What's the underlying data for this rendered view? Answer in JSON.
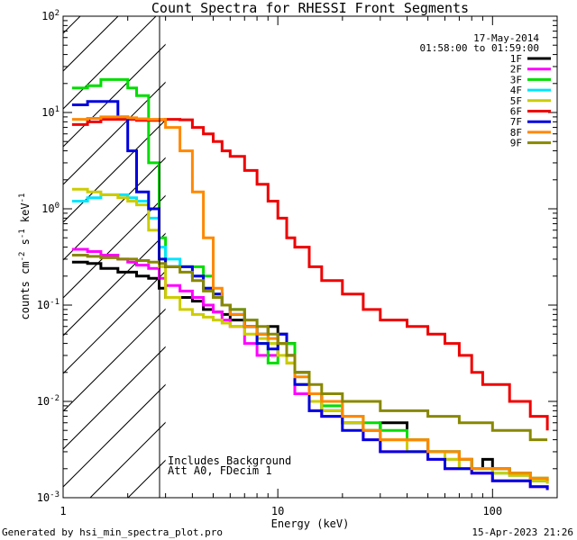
{
  "chart_data": {
    "type": "line",
    "title": "Count Spectra for RHESSI Front Segments",
    "xlabel": "Energy (keV)",
    "ylabel": "counts cm-2 s-1 keV-1",
    "xscale": "log",
    "yscale": "log",
    "xlim": [
      1,
      200
    ],
    "ylim": [
      0.001,
      100
    ],
    "x_tick_labels": [
      "1",
      "10",
      "100"
    ],
    "y_tick_labels": [
      "10-3",
      "10-2",
      "10-1",
      "100",
      "101",
      "102"
    ],
    "date": "17-May-2014",
    "time_range": "01:58:00 to 01:59:00",
    "annotations": [
      "Includes Background",
      "Att A0, FDecim 1"
    ],
    "footer_left": "Generated by hsi_min_spectra_plot.pro",
    "footer_right": "15-Apr-2023 21:26",
    "shaded_region_kev": [
      1,
      3
    ],
    "series": [
      {
        "name": "1F",
        "color": "#000000",
        "x": [
          1.1,
          1.3,
          1.5,
          1.8,
          2.0,
          2.2,
          2.5,
          2.8,
          3.0,
          3.5,
          4,
          4.5,
          5,
          5.5,
          6,
          7,
          8,
          9,
          10,
          11,
          12,
          14,
          16,
          20,
          25,
          30,
          40,
          50,
          60,
          70,
          80,
          90,
          100,
          120,
          150,
          180
        ],
        "y": [
          0.28,
          0.27,
          0.24,
          0.22,
          0.22,
          0.2,
          0.19,
          0.15,
          0.12,
          0.12,
          0.11,
          0.09,
          0.085,
          0.08,
          0.07,
          0.06,
          0.05,
          0.06,
          0.05,
          0.04,
          0.02,
          0.012,
          0.008,
          0.006,
          0.005,
          0.006,
          0.004,
          0.003,
          0.003,
          0.0025,
          0.002,
          0.0025,
          0.002,
          0.0018,
          0.0015,
          0.0015
        ]
      },
      {
        "name": "2F",
        "color": "#ff00ff",
        "x": [
          1.1,
          1.3,
          1.5,
          1.8,
          2.0,
          2.2,
          2.5,
          2.8,
          3.0,
          3.5,
          4,
          4.5,
          5,
          5.5,
          6,
          7,
          8,
          9,
          10,
          11,
          12,
          14,
          16,
          20,
          25,
          30,
          40,
          50,
          60,
          70,
          80,
          90,
          100,
          120,
          150,
          180
        ],
        "y": [
          0.38,
          0.36,
          0.33,
          0.3,
          0.28,
          0.26,
          0.24,
          0.19,
          0.16,
          0.14,
          0.12,
          0.1,
          0.085,
          0.07,
          0.06,
          0.04,
          0.03,
          0.03,
          0.04,
          0.025,
          0.012,
          0.008,
          0.007,
          0.006,
          0.004,
          0.003,
          0.003,
          0.0025,
          0.002,
          0.002,
          0.0018,
          0.0018,
          0.0015,
          0.0015,
          0.0013,
          0.0012
        ]
      },
      {
        "name": "3F",
        "color": "#00dd00",
        "x": [
          1.1,
          1.3,
          1.5,
          1.8,
          2.0,
          2.2,
          2.5,
          2.8,
          3.0,
          3.5,
          4,
          4.5,
          5,
          5.5,
          6,
          7,
          8,
          9,
          10,
          11,
          12,
          14,
          16,
          20,
          25,
          30,
          40,
          50,
          60,
          70,
          80,
          90,
          100,
          120,
          150,
          180
        ],
        "y": [
          18,
          19,
          22,
          22,
          18,
          15,
          3.0,
          0.5,
          0.25,
          0.25,
          0.25,
          0.2,
          0.12,
          0.1,
          0.09,
          0.06,
          0.04,
          0.025,
          0.04,
          0.04,
          0.02,
          0.01,
          0.009,
          0.007,
          0.006,
          0.005,
          0.004,
          0.003,
          0.003,
          0.0025,
          0.002,
          0.002,
          0.002,
          0.0018,
          0.0016,
          0.0015
        ]
      },
      {
        "name": "4F",
        "color": "#00e5ff",
        "x": [
          1.1,
          1.3,
          1.5,
          1.8,
          2.0,
          2.2,
          2.5,
          2.8,
          3.0,
          3.5,
          4,
          4.5,
          5,
          5.5,
          6,
          7,
          8,
          9,
          10,
          11,
          12,
          14,
          16,
          20,
          25,
          30,
          40,
          50,
          60,
          70,
          80,
          90,
          100,
          120,
          150,
          180
        ],
        "y": [
          1.2,
          1.3,
          1.4,
          1.4,
          1.3,
          1.2,
          0.8,
          0.4,
          0.3,
          0.25,
          0.2,
          0.15,
          0.13,
          0.1,
          0.09,
          0.07,
          0.05,
          0.04,
          0.04,
          0.03,
          0.015,
          0.01,
          0.008,
          0.006,
          0.005,
          0.004,
          0.003,
          0.003,
          0.0025,
          0.002,
          0.002,
          0.002,
          0.0018,
          0.0017,
          0.0015,
          0.0014
        ]
      },
      {
        "name": "5F",
        "color": "#cccc00",
        "x": [
          1.1,
          1.3,
          1.5,
          1.8,
          2.0,
          2.2,
          2.5,
          2.8,
          3.0,
          3.5,
          4,
          4.5,
          5,
          5.5,
          6,
          7,
          8,
          9,
          10,
          11,
          12,
          14,
          16,
          20,
          25,
          30,
          40,
          50,
          60,
          70,
          80,
          90,
          100,
          120,
          150,
          180
        ],
        "y": [
          1.6,
          1.5,
          1.4,
          1.3,
          1.2,
          1.1,
          0.6,
          0.25,
          0.12,
          0.09,
          0.08,
          0.075,
          0.07,
          0.065,
          0.06,
          0.05,
          0.045,
          0.04,
          0.03,
          0.025,
          0.015,
          0.01,
          0.008,
          0.006,
          0.005,
          0.004,
          0.003,
          0.003,
          0.0025,
          0.002,
          0.002,
          0.002,
          0.0018,
          0.0017,
          0.0015,
          0.0014
        ]
      },
      {
        "name": "6F",
        "color": "#ee0000",
        "x": [
          1.1,
          1.3,
          1.5,
          1.8,
          2.0,
          2.2,
          2.5,
          2.8,
          3.0,
          3.5,
          4,
          4.5,
          5,
          5.5,
          6,
          7,
          8,
          9,
          10,
          11,
          12,
          14,
          16,
          20,
          25,
          30,
          40,
          50,
          60,
          70,
          80,
          90,
          100,
          120,
          150,
          180
        ],
        "y": [
          7.5,
          8.0,
          8.5,
          8.5,
          8.5,
          8.3,
          8.3,
          8.4,
          8.5,
          8.4,
          7,
          6,
          5,
          4,
          3.5,
          2.5,
          1.8,
          1.2,
          0.8,
          0.5,
          0.4,
          0.25,
          0.18,
          0.13,
          0.09,
          0.07,
          0.06,
          0.05,
          0.04,
          0.03,
          0.02,
          0.015,
          0.015,
          0.01,
          0.007,
          0.005
        ]
      },
      {
        "name": "7F",
        "color": "#0000dd",
        "x": [
          1.1,
          1.3,
          1.5,
          1.8,
          2.0,
          2.2,
          2.5,
          2.8,
          3.0,
          3.5,
          4,
          4.5,
          5,
          5.5,
          6,
          7,
          8,
          9,
          10,
          11,
          12,
          14,
          16,
          20,
          25,
          30,
          40,
          50,
          60,
          70,
          80,
          90,
          100,
          120,
          150,
          180
        ],
        "y": [
          12,
          13,
          13,
          9,
          4,
          1.5,
          1.0,
          0.3,
          0.25,
          0.25,
          0.2,
          0.15,
          0.13,
          0.1,
          0.08,
          0.06,
          0.04,
          0.035,
          0.05,
          0.03,
          0.015,
          0.008,
          0.007,
          0.005,
          0.004,
          0.003,
          0.003,
          0.0025,
          0.002,
          0.002,
          0.0018,
          0.0018,
          0.0015,
          0.0015,
          0.0013,
          0.0012
        ]
      },
      {
        "name": "8F",
        "color": "#ff8800",
        "x": [
          1.1,
          1.3,
          1.5,
          1.8,
          2.0,
          2.2,
          2.5,
          2.8,
          3.0,
          3.5,
          4,
          4.5,
          5,
          5.5,
          6,
          7,
          8,
          9,
          10,
          11,
          12,
          14,
          16,
          20,
          25,
          30,
          40,
          50,
          60,
          70,
          80,
          90,
          100,
          120,
          150,
          180
        ],
        "y": [
          8.5,
          8.7,
          9.0,
          9.0,
          8.8,
          8.6,
          8.5,
          8.5,
          7,
          4,
          1.5,
          0.5,
          0.15,
          0.1,
          0.08,
          0.06,
          0.05,
          0.045,
          0.04,
          0.03,
          0.018,
          0.012,
          0.01,
          0.007,
          0.005,
          0.004,
          0.004,
          0.003,
          0.003,
          0.0025,
          0.002,
          0.002,
          0.002,
          0.0018,
          0.0016,
          0.0015
        ]
      },
      {
        "name": "9F",
        "color": "#888800",
        "x": [
          1.1,
          1.3,
          1.5,
          1.8,
          2.0,
          2.2,
          2.5,
          2.8,
          3.0,
          3.5,
          4,
          4.5,
          5,
          5.5,
          6,
          7,
          8,
          9,
          10,
          11,
          12,
          14,
          16,
          20,
          25,
          30,
          40,
          50,
          60,
          70,
          80,
          90,
          100,
          120,
          150,
          180
        ],
        "y": [
          0.33,
          0.32,
          0.31,
          0.3,
          0.3,
          0.29,
          0.28,
          0.27,
          0.25,
          0.22,
          0.18,
          0.14,
          0.12,
          0.1,
          0.09,
          0.07,
          0.06,
          0.05,
          0.04,
          0.03,
          0.02,
          0.015,
          0.012,
          0.01,
          0.01,
          0.008,
          0.008,
          0.007,
          0.007,
          0.006,
          0.006,
          0.006,
          0.005,
          0.005,
          0.004,
          0.004
        ]
      }
    ]
  }
}
